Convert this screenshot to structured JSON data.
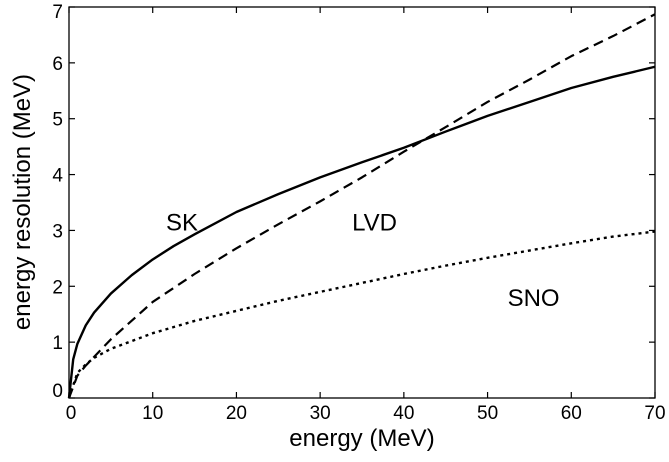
{
  "chart_data": {
    "type": "line",
    "title": "",
    "xlabel": "energy (MeV)",
    "ylabel": "energy resolution (MeV)",
    "xlim": [
      0,
      70
    ],
    "ylim": [
      0,
      7
    ],
    "x_ticks": [
      "0",
      "10",
      "20",
      "30",
      "40",
      "50",
      "60",
      "70"
    ],
    "y_ticks": [
      "0",
      "1",
      "2",
      "3",
      "4",
      "5",
      "6",
      "7"
    ],
    "grid": false,
    "legend": "none",
    "series": [
      {
        "name": "SK",
        "style": "solid",
        "x": [
          0,
          0.5,
          1,
          2,
          3,
          5,
          7.5,
          10,
          12.5,
          15,
          20,
          25,
          30,
          35,
          40,
          45,
          50,
          55,
          60,
          65,
          70
        ],
        "y": [
          0,
          0.69,
          0.97,
          1.3,
          1.53,
          1.87,
          2.2,
          2.48,
          2.72,
          2.93,
          3.33,
          3.65,
          3.95,
          4.22,
          4.48,
          4.77,
          5.05,
          5.3,
          5.55,
          5.75,
          5.93
        ]
      },
      {
        "name": "LVD",
        "style": "dashed",
        "x": [
          0,
          1,
          2,
          5,
          10,
          15,
          20,
          25,
          30,
          35,
          40,
          45,
          50,
          55,
          60,
          65,
          70
        ],
        "y": [
          0,
          0.4,
          0.58,
          1.05,
          1.72,
          2.22,
          2.68,
          3.11,
          3.52,
          3.95,
          4.41,
          4.85,
          5.3,
          5.7,
          6.12,
          6.48,
          6.87
        ]
      },
      {
        "name": "SNO",
        "style": "dotted",
        "x": [
          0,
          1,
          2,
          3,
          5,
          10,
          15,
          20,
          25,
          30,
          35,
          40,
          45,
          50,
          55,
          60,
          65,
          70
        ],
        "y": [
          0,
          0.45,
          0.6,
          0.72,
          0.88,
          1.16,
          1.38,
          1.56,
          1.74,
          1.9,
          2.06,
          2.22,
          2.37,
          2.51,
          2.64,
          2.77,
          2.89,
          2.98
        ]
      }
    ],
    "annotations": [
      {
        "text": "SK",
        "x": 13.5,
        "y": 3.0
      },
      {
        "text": "LVD",
        "x": 36.5,
        "y": 3.0
      },
      {
        "text": "SNO",
        "x": 55.5,
        "y": 1.65
      }
    ]
  }
}
